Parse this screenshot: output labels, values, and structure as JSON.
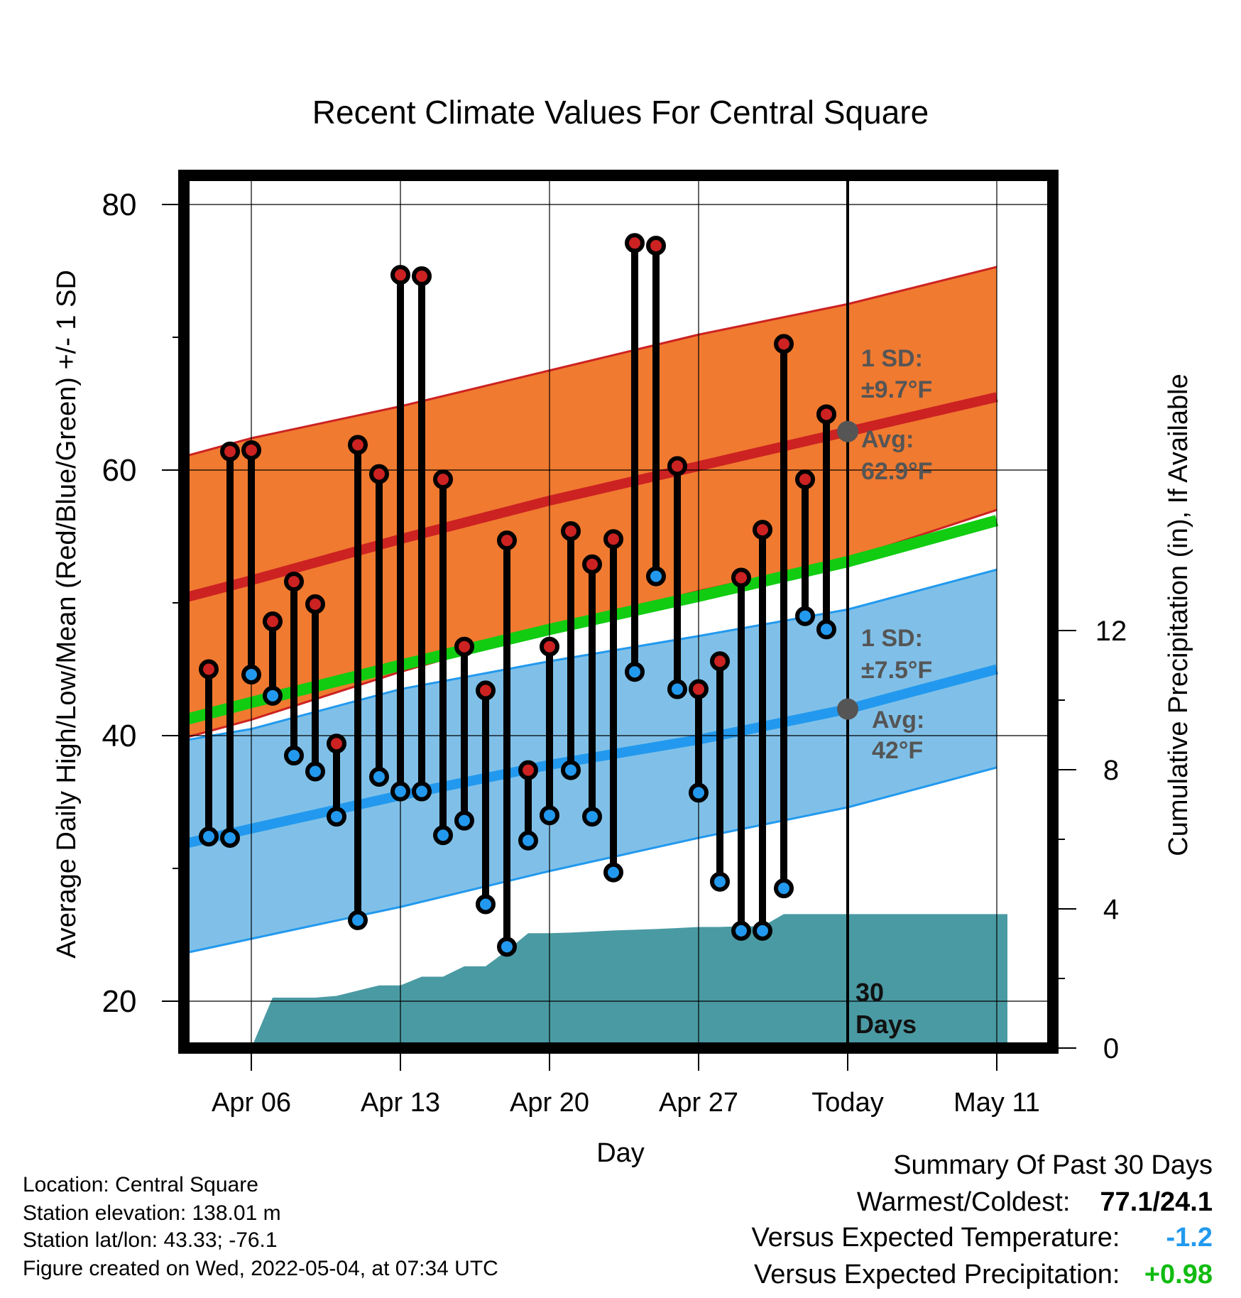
{
  "chart_data": {
    "type": "line",
    "title": "Recent Climate Values For Central Square",
    "xlabel": "Day",
    "ylabel": "Average Daily High/Low/Mean (Red/Blue/Green) +/- 1 SD",
    "y2label": "Cumulative Precipitation (in), If Available",
    "ylim": [
      16.5,
      80
    ],
    "y_ticks": [
      20,
      40,
      60,
      80
    ],
    "y2lim": [
      0,
      19.6
    ],
    "y2_ticks": [
      0,
      4,
      8,
      12
    ],
    "x_range_days": [
      -0.5,
      40
    ],
    "x_ticks": [
      {
        "day": 5,
        "label": "Apr 06"
      },
      {
        "day": 12,
        "label": "Apr 13"
      },
      {
        "day": 19,
        "label": "Apr 20"
      },
      {
        "day": 26,
        "label": "Apr 27"
      },
      {
        "day": 33,
        "label": "Today"
      },
      {
        "day": 40,
        "label": "May 11"
      }
    ],
    "today_label": "30\nDays",
    "normals": {
      "x_days": [
        -0.5,
        5,
        12,
        19,
        26,
        33,
        40
      ],
      "high_mean": [
        49.4,
        51.7,
        54.8,
        57.7,
        60.3,
        62.9,
        65.5
      ],
      "high_upper": [
        60.0,
        62.4,
        64.8,
        67.5,
        70.2,
        72.5,
        75.3
      ],
      "high_lower": [
        38.8,
        41.2,
        44.8,
        48.0,
        50.9,
        53.3,
        57.0
      ],
      "low_mean": [
        31.0,
        33.0,
        35.5,
        37.8,
        39.7,
        42.0,
        45.0
      ],
      "low_upper": [
        39.0,
        40.5,
        43.5,
        45.6,
        47.5,
        49.5,
        52.5
      ],
      "low_lower": [
        22.8,
        24.7,
        27.1,
        29.8,
        32.3,
        34.6,
        37.6
      ],
      "mean_normal": [
        40.2,
        42.5,
        45.3,
        48.0,
        50.5,
        53.1,
        56.2
      ]
    },
    "series": [
      {
        "name": "High",
        "color": "#cc2222",
        "x_days": [
          3,
          4,
          5,
          6,
          7,
          8,
          9,
          10,
          11,
          12,
          13,
          14,
          15,
          16,
          17,
          18,
          19,
          20,
          21,
          22,
          23,
          24,
          25,
          26,
          27,
          28,
          29,
          30,
          31,
          32
        ],
        "values": [
          45.0,
          61.4,
          61.5,
          48.6,
          51.6,
          49.9,
          39.4,
          61.9,
          59.7,
          74.7,
          74.6,
          59.3,
          46.7,
          43.4,
          54.7,
          37.4,
          46.7,
          55.4,
          52.9,
          54.8,
          77.1,
          76.9,
          60.3,
          43.5,
          45.6,
          51.9,
          55.5,
          69.5,
          59.3,
          64.2
        ]
      },
      {
        "name": "Low",
        "color": "#2299ee",
        "x_days": [
          3,
          4,
          5,
          6,
          7,
          8,
          9,
          10,
          11,
          12,
          13,
          14,
          15,
          16,
          17,
          18,
          19,
          20,
          21,
          22,
          23,
          24,
          25,
          26,
          27,
          28,
          29,
          30,
          31,
          32
        ],
        "values": [
          32.4,
          32.3,
          44.6,
          43.0,
          38.5,
          37.3,
          33.9,
          26.1,
          36.9,
          35.8,
          35.8,
          32.5,
          33.6,
          27.3,
          24.1,
          32.1,
          34.0,
          37.4,
          33.9,
          29.7,
          44.8,
          52.0,
          43.5,
          35.7,
          29.0,
          25.3,
          25.3,
          28.5,
          49.0,
          48.0
        ]
      }
    ],
    "precipitation": {
      "x_days": [
        4,
        5,
        6,
        7,
        8,
        9,
        10,
        11,
        12,
        13,
        14,
        15,
        16,
        17,
        18,
        19,
        20,
        21,
        22,
        23,
        24,
        25,
        26,
        27,
        28,
        29,
        30,
        31,
        32,
        33,
        34,
        35,
        36,
        37,
        38,
        39,
        40
      ],
      "values": [
        0,
        0,
        1.45,
        1.45,
        1.45,
        1.5,
        1.65,
        1.8,
        1.8,
        2.05,
        2.05,
        2.35,
        2.35,
        2.8,
        3.3,
        3.3,
        3.32,
        3.35,
        3.38,
        3.4,
        3.42,
        3.45,
        3.48,
        3.48,
        3.5,
        3.5,
        3.85,
        3.85,
        3.85,
        3.85,
        3.85,
        3.85,
        3.85,
        3.85,
        3.85,
        3.85,
        3.85
      ]
    },
    "annotations": {
      "high_sd": "1 SD:",
      "high_sd_val": "±9.7°F",
      "high_avg": "Avg:",
      "high_avg_val": "62.9°F",
      "low_sd": "1 SD:",
      "low_sd_val": "±7.5°F",
      "low_avg": "Avg:",
      "low_avg_val": "42°F"
    }
  },
  "footer": {
    "location": "Location: Central Square",
    "elevation": "Station elevation: 138.01 m",
    "latlon": "Station lat/lon: 43.33; -76.1",
    "created": "Figure created on Wed, 2022-05-04, at 07:34 UTC"
  },
  "summary": {
    "title": "Summary Of Past 30 Days",
    "warm_label": "Warmest/Coldest:",
    "warm_value": "77.1/24.1",
    "temp_label": "Versus Expected Temperature:",
    "temp_value": "-1.2",
    "precip_label": "Versus Expected Precipitation:",
    "precip_value": "+0.98"
  },
  "colors": {
    "high": "#cc2222",
    "high_band": "#f07a30",
    "low": "#2299ee",
    "low_band": "#80c0e8",
    "mean": "#11cc11",
    "precip": "#4a9aa3",
    "annotation": "#555555",
    "temp_diff": "#2299ee",
    "precip_diff": "#11bb11"
  }
}
